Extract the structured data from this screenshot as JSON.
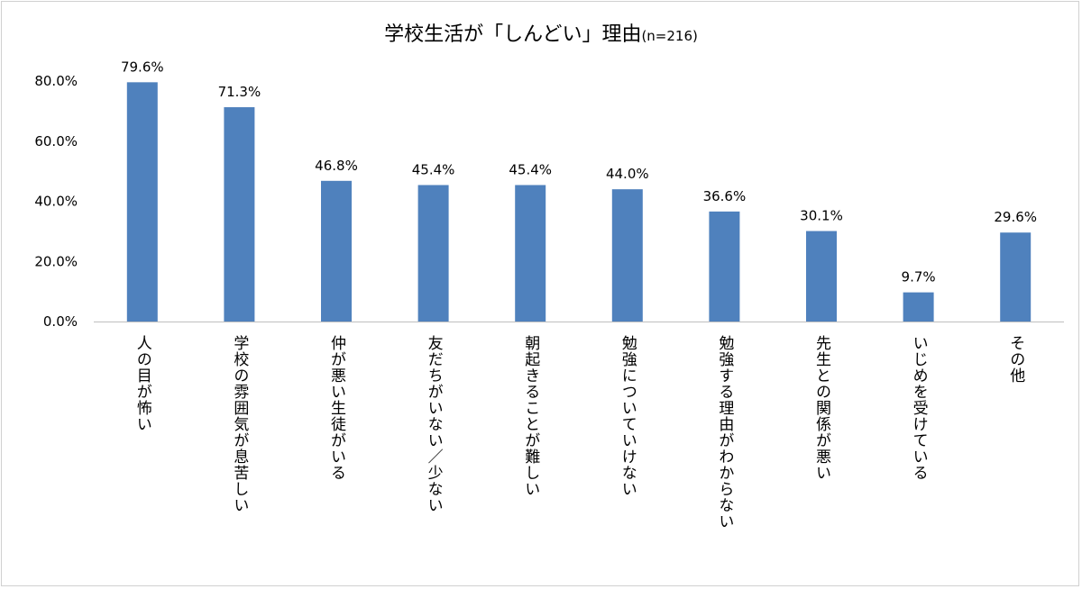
{
  "chart_data": {
    "type": "bar",
    "title": "学校生活が「しんどい」理由",
    "subtitle": "(n=216)",
    "categories": [
      "人の目が怖い",
      "学校の雰囲気が息苦しい",
      "仲が悪い生徒がいる",
      "友だちがいない／少ない",
      "朝起きることが難しい",
      "勉強についていけない",
      "勉強する理由がわからない",
      "先生との関係が悪い",
      "いじめを受けている",
      "その他"
    ],
    "values": [
      79.6,
      71.3,
      46.8,
      45.4,
      45.4,
      44.0,
      36.6,
      30.1,
      9.7,
      29.6
    ],
    "data_labels": [
      "79.6%",
      "71.3%",
      "46.8%",
      "45.4%",
      "45.4%",
      "44.0%",
      "36.6%",
      "30.1%",
      "9.7%",
      "29.6%"
    ],
    "yticks": [
      "0.0%",
      "20.0%",
      "40.0%",
      "60.0%",
      "80.0%"
    ],
    "ytick_values": [
      0,
      20,
      40,
      60,
      80
    ],
    "ylim": [
      0,
      80
    ],
    "xlabel": "",
    "ylabel": "",
    "grid": false,
    "legend": "none",
    "bar_color": "#4f81bd"
  }
}
